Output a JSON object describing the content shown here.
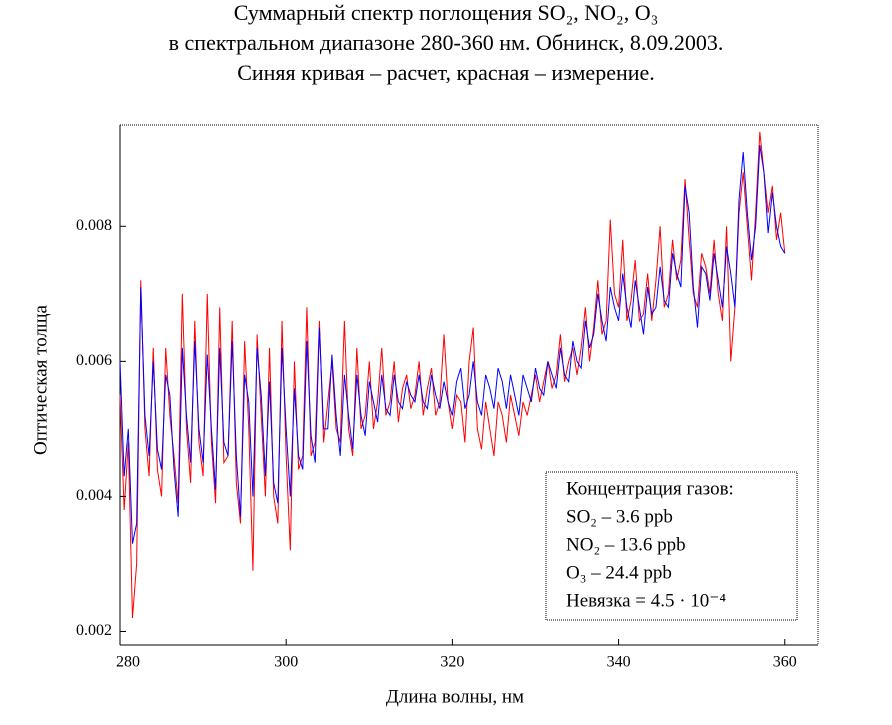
{
  "chart_data": {
    "type": "line",
    "title": [
      "Суммарный спектр поглощения SO₂, NO₂, O₃",
      "в спектральном диапазоне 280-360 нм. Обнинск, 8.09.2003.",
      "Синяя кривая – расчет, красная – измерение."
    ],
    "x_label": "Длина волны, нм",
    "y_label": "Оптическая толща",
    "annotation": [
      "Концентрация газов:",
      "SO₂ – 3.6 ppb",
      "NO₂ – 13.6 ppb",
      "O₃ – 24.4 ppb",
      "Невязка = 4.5 · 10⁻⁴"
    ],
    "xlim": [
      280,
      364
    ],
    "xticks": [
      280,
      300,
      320,
      340,
      360
    ],
    "ylim": [
      0.0018,
      0.0095
    ],
    "yticks": [
      0.002,
      0.004,
      0.006,
      0.008
    ],
    "grid": false,
    "x": [
      280,
      280.5,
      281,
      281.5,
      282,
      282.5,
      283,
      283.5,
      284,
      284.5,
      285,
      285.5,
      286,
      286.5,
      287,
      287.5,
      288,
      288.5,
      289,
      289.5,
      290,
      290.5,
      291,
      291.5,
      292,
      292.5,
      293,
      293.5,
      294,
      294.5,
      295,
      295.5,
      296,
      296.5,
      297,
      297.5,
      298,
      298.5,
      299,
      299.5,
      300,
      300.5,
      301,
      301.5,
      302,
      302.5,
      303,
      303.5,
      304,
      304.5,
      305,
      305.5,
      306,
      306.5,
      307,
      307.5,
      308,
      308.5,
      309,
      309.5,
      310,
      310.5,
      311,
      311.5,
      312,
      312.5,
      313,
      313.5,
      314,
      314.5,
      315,
      315.5,
      316,
      316.5,
      317,
      317.5,
      318,
      318.5,
      319,
      319.5,
      320,
      320.5,
      321,
      321.5,
      322,
      322.5,
      323,
      323.5,
      324,
      324.5,
      325,
      325.5,
      326,
      326.5,
      327,
      327.5,
      328,
      328.5,
      329,
      329.5,
      330,
      330.5,
      331,
      331.5,
      332,
      332.5,
      333,
      333.5,
      334,
      334.5,
      335,
      335.5,
      336,
      336.5,
      337,
      337.5,
      338,
      338.5,
      339,
      339.5,
      340,
      340.5,
      341,
      341.5,
      342,
      342.5,
      343,
      343.5,
      344,
      344.5,
      345,
      345.5,
      346,
      346.5,
      347,
      347.5,
      348,
      348.5,
      349,
      349.5,
      350,
      350.5,
      351,
      351.5,
      352,
      352.5,
      353,
      353.5,
      354,
      354.5,
      355,
      355.5,
      356,
      356.5,
      357,
      357.5,
      358,
      358.5,
      359,
      359.5,
      360
    ],
    "series": [
      {
        "color": "#ff0000",
        "values": [
          0.0055,
          0.0038,
          0.0048,
          0.0022,
          0.003,
          0.0072,
          0.005,
          0.0043,
          0.0062,
          0.0044,
          0.004,
          0.0062,
          0.0052,
          0.0046,
          0.0039,
          0.007,
          0.005,
          0.0042,
          0.0066,
          0.0048,
          0.0043,
          0.007,
          0.0048,
          0.0039,
          0.0068,
          0.0045,
          0.0046,
          0.0066,
          0.0042,
          0.0036,
          0.0063,
          0.005,
          0.0029,
          0.0064,
          0.0052,
          0.004,
          0.0062,
          0.004,
          0.0036,
          0.0066,
          0.0046,
          0.0032,
          0.006,
          0.0044,
          0.0046,
          0.0068,
          0.0046,
          0.0048,
          0.0066,
          0.0048,
          0.0054,
          0.006,
          0.005,
          0.0048,
          0.0066,
          0.005,
          0.0046,
          0.0062,
          0.005,
          0.0052,
          0.006,
          0.005,
          0.0054,
          0.0062,
          0.0052,
          0.0054,
          0.006,
          0.0051,
          0.0056,
          0.0058,
          0.0053,
          0.0055,
          0.006,
          0.0052,
          0.0056,
          0.0059,
          0.0052,
          0.0054,
          0.0064,
          0.0054,
          0.005,
          0.0055,
          0.0054,
          0.0048,
          0.006,
          0.0065,
          0.005,
          0.0047,
          0.0054,
          0.005,
          0.0046,
          0.0054,
          0.0052,
          0.0048,
          0.0055,
          0.0052,
          0.0049,
          0.0054,
          0.0052,
          0.0055,
          0.0058,
          0.0054,
          0.0057,
          0.006,
          0.0056,
          0.0058,
          0.0064,
          0.0057,
          0.006,
          0.0062,
          0.0058,
          0.0062,
          0.0068,
          0.006,
          0.0065,
          0.0072,
          0.0064,
          0.0066,
          0.0081,
          0.007,
          0.0068,
          0.0078,
          0.0066,
          0.0069,
          0.0075,
          0.0066,
          0.0067,
          0.0073,
          0.0066,
          0.0072,
          0.008,
          0.0068,
          0.007,
          0.0078,
          0.0072,
          0.0075,
          0.0087,
          0.0078,
          0.007,
          0.0068,
          0.0076,
          0.0074,
          0.007,
          0.0078,
          0.007,
          0.0066,
          0.008,
          0.006,
          0.0068,
          0.0082,
          0.0088,
          0.008,
          0.0072,
          0.0082,
          0.0094,
          0.0088,
          0.0082,
          0.0086,
          0.0078,
          0.0082,
          0.0076
        ]
      },
      {
        "color": "#0000ff",
        "values": [
          0.006,
          0.0043,
          0.005,
          0.0033,
          0.0036,
          0.0071,
          0.0052,
          0.0046,
          0.006,
          0.0047,
          0.0044,
          0.0058,
          0.0055,
          0.0044,
          0.0037,
          0.0062,
          0.0052,
          0.0045,
          0.0063,
          0.005,
          0.0045,
          0.0061,
          0.005,
          0.0041,
          0.0062,
          0.0048,
          0.0046,
          0.0063,
          0.0046,
          0.0037,
          0.0058,
          0.0054,
          0.004,
          0.0062,
          0.0055,
          0.0043,
          0.0057,
          0.0042,
          0.0039,
          0.0062,
          0.005,
          0.004,
          0.0056,
          0.0046,
          0.0044,
          0.0063,
          0.0049,
          0.0045,
          0.0065,
          0.005,
          0.005,
          0.0061,
          0.0052,
          0.0046,
          0.0058,
          0.0052,
          0.0047,
          0.0058,
          0.0052,
          0.0049,
          0.0057,
          0.0054,
          0.0051,
          0.0058,
          0.0053,
          0.0052,
          0.0058,
          0.0054,
          0.0053,
          0.0057,
          0.0055,
          0.0054,
          0.0058,
          0.0054,
          0.0053,
          0.0058,
          0.0055,
          0.0053,
          0.0057,
          0.0054,
          0.0052,
          0.0057,
          0.0059,
          0.0053,
          0.0055,
          0.006,
          0.0054,
          0.0052,
          0.0058,
          0.0056,
          0.0053,
          0.0059,
          0.0057,
          0.0053,
          0.0058,
          0.0055,
          0.0052,
          0.0058,
          0.0056,
          0.0054,
          0.0059,
          0.0056,
          0.0055,
          0.006,
          0.0058,
          0.0056,
          0.0062,
          0.0058,
          0.0057,
          0.0063,
          0.006,
          0.0059,
          0.0066,
          0.0062,
          0.0064,
          0.007,
          0.0066,
          0.0063,
          0.0071,
          0.0068,
          0.0066,
          0.0073,
          0.0068,
          0.0065,
          0.0072,
          0.0068,
          0.0064,
          0.0071,
          0.0067,
          0.0068,
          0.0074,
          0.0069,
          0.0068,
          0.0076,
          0.0073,
          0.0071,
          0.0086,
          0.0082,
          0.0071,
          0.0065,
          0.0074,
          0.0073,
          0.0069,
          0.0076,
          0.0072,
          0.0068,
          0.0077,
          0.0073,
          0.0068,
          0.0084,
          0.0091,
          0.0082,
          0.0075,
          0.008,
          0.0092,
          0.0088,
          0.0079,
          0.0085,
          0.008,
          0.0077,
          0.0076
        ]
      }
    ]
  }
}
